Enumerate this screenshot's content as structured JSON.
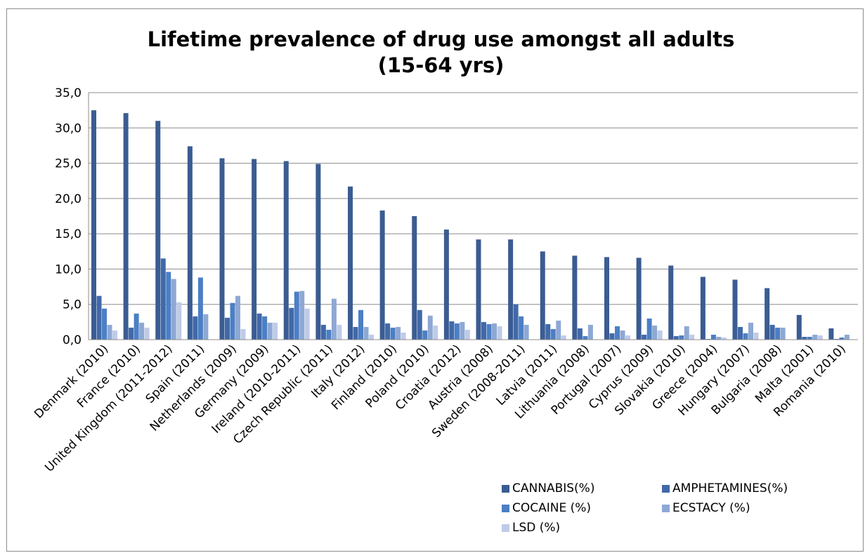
{
  "chart_data": {
    "type": "bar",
    "title": "Lifetime prevalence of drug use amongst all adults (15-64 yrs)",
    "title_lines": [
      "Lifetime prevalence of drug use amongst all adults",
      "(15-64 yrs)"
    ],
    "xlabel": "",
    "ylabel": "",
    "ylim": [
      0,
      35
    ],
    "yticks": [
      "0,0",
      "5,0",
      "10,0",
      "15,0",
      "20,0",
      "25,0",
      "30,0",
      "35,0"
    ],
    "grid": true,
    "legend_position": "bottom-right",
    "categories": [
      "Denmark (2010)",
      "France (2010)",
      "United Kingdom (2011-2012)",
      "Spain (2011)",
      "Netherlands (2009)",
      "Germany (2009)",
      "Ireland (2010-2011)",
      "Czech Republic (2011)",
      "Italy (2012)",
      "Finland (2010)",
      "Poland (2010)",
      "Croatia (2012)",
      "Austria (2008)",
      "Sweden (2008-2011)",
      "Latvia (2011)",
      "Lithuania (2008)",
      "Portugal (2007)",
      "Cyprus (2009)",
      "Slovakia (2010)",
      "Greece (2004)",
      "Hungary (2007)",
      "Bulgaria (2008)",
      "Malta (2001)",
      "Romania (2010)"
    ],
    "series": [
      {
        "name": "CANNABIS(%)",
        "color": "#3b5c92",
        "values": [
          32.5,
          32.1,
          31.0,
          27.4,
          25.7,
          25.6,
          25.3,
          24.9,
          21.7,
          18.3,
          17.5,
          15.6,
          14.2,
          14.2,
          12.5,
          11.9,
          11.7,
          11.6,
          10.5,
          8.9,
          8.5,
          7.3,
          3.5,
          1.6
        ]
      },
      {
        "name": "AMPHETAMINES(%)",
        "color": "#4169a8",
        "values": [
          6.2,
          1.7,
          11.5,
          3.3,
          3.1,
          3.7,
          4.5,
          2.1,
          1.8,
          2.3,
          4.2,
          2.6,
          2.5,
          5.0,
          2.2,
          1.6,
          0.9,
          0.7,
          0.5,
          0.1,
          1.8,
          2.1,
          0.4,
          0.1
        ]
      },
      {
        "name": "COCAINE (%)",
        "color": "#4c7fc4",
        "values": [
          4.4,
          3.7,
          9.6,
          8.8,
          5.2,
          3.3,
          6.8,
          1.4,
          4.2,
          1.7,
          1.3,
          2.3,
          2.2,
          3.3,
          1.5,
          0.5,
          1.9,
          3.0,
          0.6,
          0.7,
          0.9,
          1.7,
          0.4,
          0.3
        ]
      },
      {
        "name": "ECSTACY (%)",
        "color": "#8ea8d4",
        "values": [
          2.1,
          2.4,
          8.6,
          3.6,
          6.2,
          2.4,
          6.9,
          5.8,
          1.8,
          1.8,
          3.4,
          2.5,
          2.3,
          2.1,
          2.7,
          2.1,
          1.3,
          2.0,
          1.9,
          0.4,
          2.4,
          1.7,
          0.7,
          0.7
        ]
      },
      {
        "name": "LSD (%)",
        "color": "#bfcbe6",
        "values": [
          1.3,
          1.7,
          5.3,
          0.0,
          1.5,
          2.4,
          4.4,
          2.1,
          0.7,
          1.0,
          2.0,
          1.4,
          1.9,
          0.0,
          0.6,
          0.0,
          0.6,
          1.3,
          0.7,
          0.3,
          1.0,
          0.0,
          0.6,
          0.0
        ]
      }
    ]
  }
}
